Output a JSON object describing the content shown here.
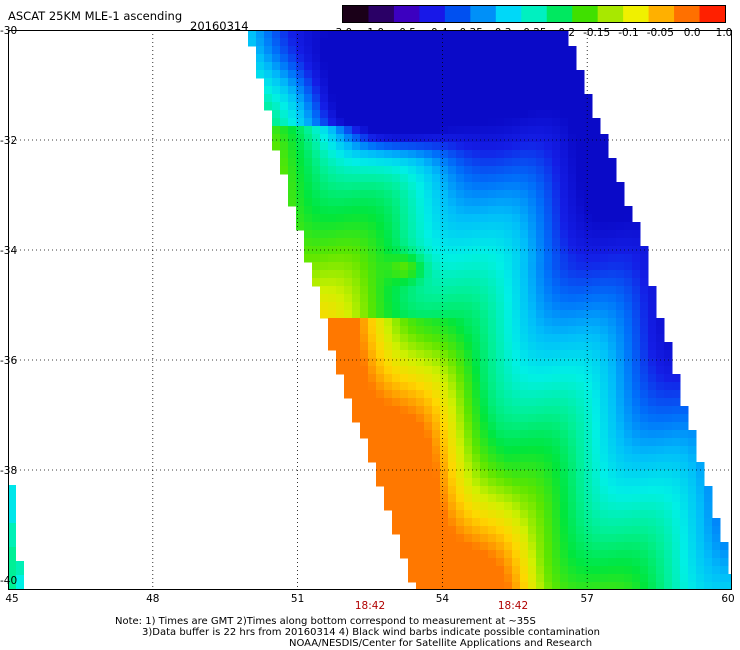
{
  "header": {
    "title": "ASCAT 25KM MLE-1 ascending",
    "date": "20160314"
  },
  "colorbar": {
    "labels": [
      "-3.0",
      "-1.0",
      "-0.5",
      "-0.4",
      "-0.35",
      "-0.3",
      "-0.25",
      "-0.2",
      "-0.15",
      "-0.1",
      "-0.05",
      "0.0",
      "1.0"
    ],
    "colors": [
      "#1a0018",
      "#2a0066",
      "#3c00c0",
      "#1818e8",
      "#0050f0",
      "#0090f8",
      "#00d8f8",
      "#00f0c0",
      "#00e860",
      "#40e000",
      "#a8e800",
      "#f0f000",
      "#ffb000",
      "#ff7000",
      "#ff2000"
    ]
  },
  "axes": {
    "lat_labels": [
      "-30",
      "-32",
      "-34",
      "-36",
      "-38",
      "-40"
    ],
    "lon_labels": [
      "45",
      "48",
      "51",
      "54",
      "57",
      "60"
    ],
    "time_labels": [
      "18:42",
      "18:42"
    ]
  },
  "notes": {
    "line1": "Note: 1) Times are GMT 2)Times along bottom correspond to measurement at ~35S",
    "line2": "3)Data buffer is 22 hrs from 20160314 4) Black wind barbs indicate possible contamination",
    "line3": "NOAA/NESDIS/Center for Satellite Applications and Research"
  }
}
